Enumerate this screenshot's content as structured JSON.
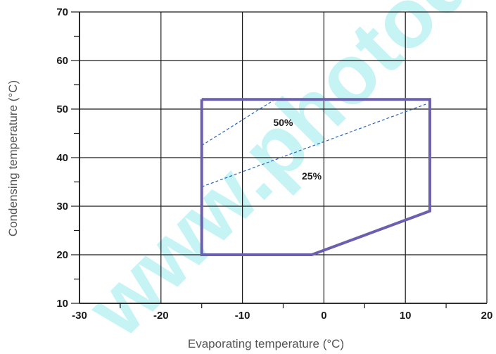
{
  "chart_data": {
    "type": "line",
    "title": "",
    "xlabel": "Evaporating temperature (°C)",
    "ylabel": "Condensing temperature (°C)",
    "xlim": [
      -30,
      20
    ],
    "ylim": [
      10,
      70
    ],
    "x_ticks": [
      -30,
      -20,
      -10,
      0,
      10,
      20
    ],
    "x_tick_labels": [
      "-30",
      "-20",
      "-10",
      "0",
      "10",
      "20"
    ],
    "y_ticks": [
      10,
      20,
      30,
      40,
      50,
      60,
      70
    ],
    "y_tick_labels": [
      "10",
      "20",
      "30",
      "40",
      "50",
      "60",
      "70"
    ],
    "grid": true,
    "colors": {
      "envelope": "#6b5fb0",
      "dashed": "#2563b8",
      "grid": "#1a1a1a"
    },
    "envelope": {
      "x": [
        -15,
        13,
        13,
        -1.5,
        -15,
        -15
      ],
      "y": [
        52,
        52,
        29,
        20,
        20,
        52
      ]
    },
    "dashed_lines": [
      {
        "label": "50%",
        "x": [
          -15,
          -6
        ],
        "y": [
          42.5,
          52
        ]
      },
      {
        "label": "25%",
        "x": [
          -15,
          12.5
        ],
        "y": [
          34,
          51
        ]
      }
    ],
    "region_labels": [
      {
        "text": "50%",
        "x": -5,
        "y": 46.5
      },
      {
        "text": "25%",
        "x": -1.5,
        "y": 35.5
      }
    ]
  },
  "watermark": "www.photod"
}
